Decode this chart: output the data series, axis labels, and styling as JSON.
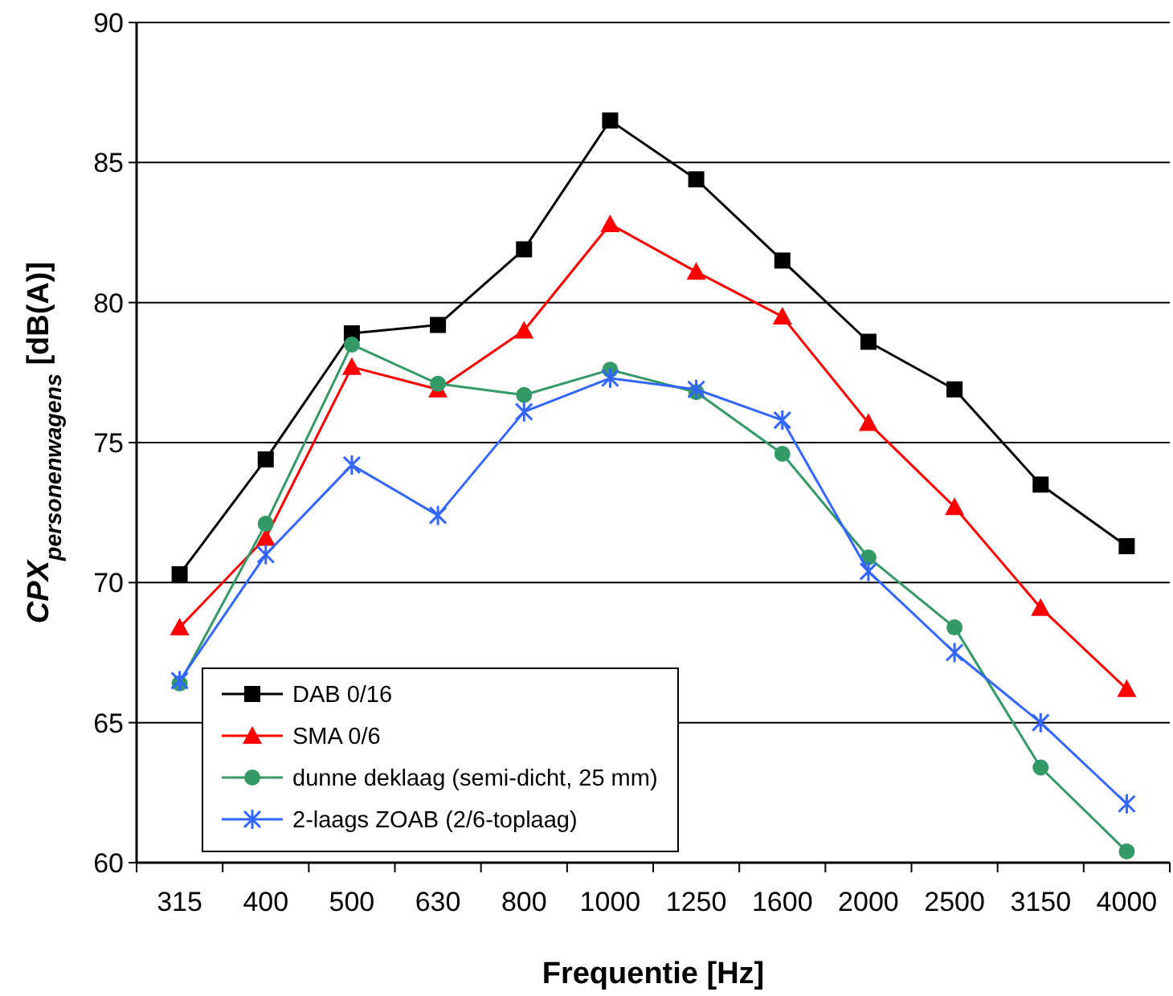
{
  "chart_data": {
    "type": "line",
    "xlabel": "Frequentie [Hz]",
    "ylabel": "CPX$_{personenwagens}$ [dB(A)]",
    "categories": [
      "315",
      "400",
      "500",
      "630",
      "800",
      "1000",
      "1250",
      "1600",
      "2000",
      "2500",
      "3150",
      "4000"
    ],
    "series": [
      {
        "name": "DAB 0/16",
        "color": "#000000",
        "marker": "square",
        "values": [
          70.3,
          74.4,
          78.9,
          79.2,
          81.9,
          86.5,
          84.4,
          81.5,
          78.6,
          76.9,
          73.5,
          71.3
        ]
      },
      {
        "name": "SMA 0/6",
        "color": "#ff0000",
        "marker": "triangle",
        "values": [
          68.4,
          71.6,
          77.7,
          76.9,
          79.0,
          82.8,
          81.1,
          79.5,
          75.7,
          72.7,
          69.1,
          66.2
        ]
      },
      {
        "name": "dunne deklaag (semi-dicht, 25 mm)",
        "color": "#339966",
        "marker": "circle",
        "values": [
          66.4,
          72.1,
          78.5,
          77.1,
          76.7,
          77.6,
          76.8,
          74.6,
          70.9,
          68.4,
          63.4,
          60.4
        ]
      },
      {
        "name": "2-laags ZOAB (2/6-toplaag)",
        "color": "#3366ff",
        "marker": "cross",
        "values": [
          66.5,
          71.0,
          74.2,
          72.4,
          76.1,
          77.3,
          76.9,
          75.8,
          70.4,
          67.5,
          65.0,
          62.1
        ]
      }
    ],
    "ylim": [
      60,
      90
    ],
    "yticks": [
      60,
      65,
      70,
      75,
      80,
      85,
      90
    ],
    "grid": "y",
    "legend": "bottom left"
  }
}
